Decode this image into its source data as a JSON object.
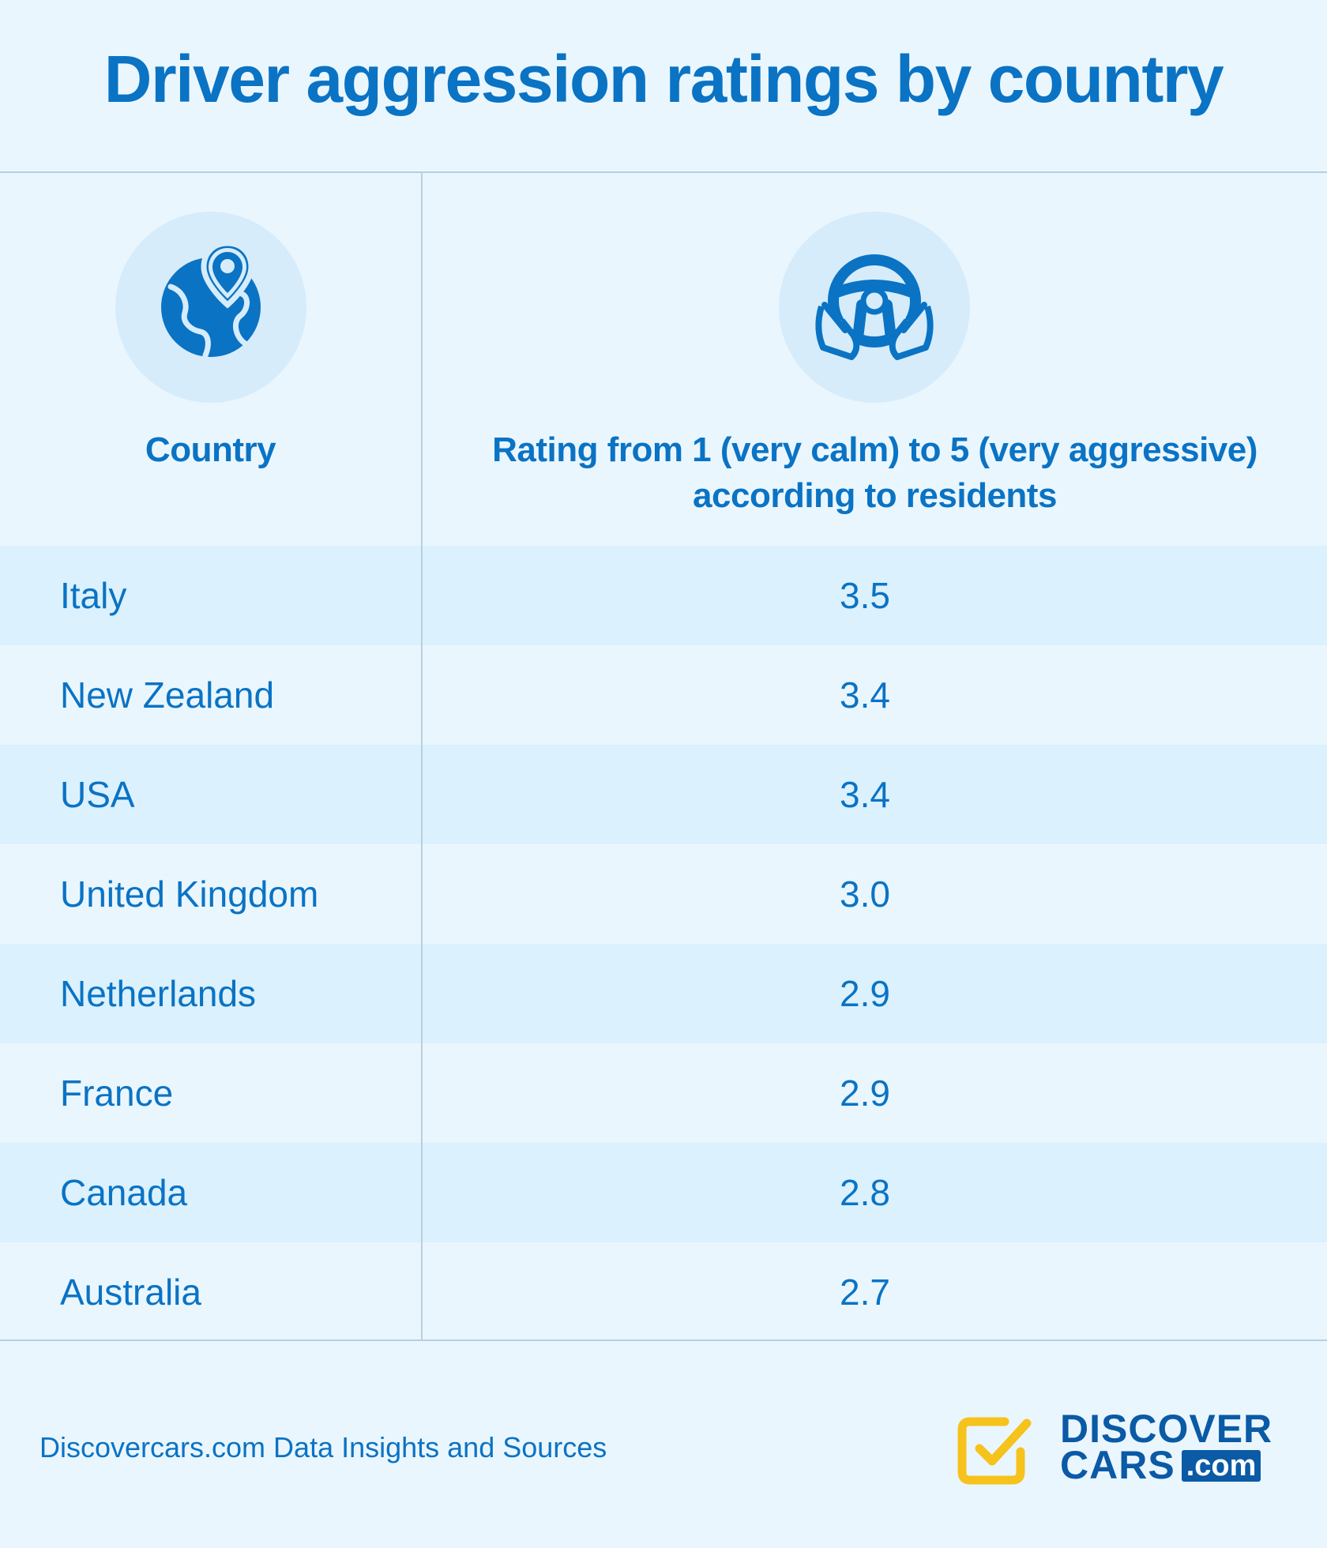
{
  "title": "Driver aggression ratings by country",
  "header": {
    "country_label": "Country",
    "rating_label_line1": "Rating from 1 (very calm) to 5 (very aggressive)",
    "rating_label_line2": "according to residents",
    "country_icon": "globe-location-pin-icon",
    "rating_icon": "hands-steering-wheel-icon"
  },
  "chart_data": {
    "type": "table",
    "title": "Driver aggression ratings by country",
    "columns": [
      "Country",
      "Rating from 1 (very calm) to 5 (very aggressive) according to residents"
    ],
    "rows": [
      {
        "country": "Italy",
        "rating": "3.5"
      },
      {
        "country": "New Zealand",
        "rating": "3.4"
      },
      {
        "country": "USA",
        "rating": "3.4"
      },
      {
        "country": "United Kingdom",
        "rating": "3.0"
      },
      {
        "country": "Netherlands",
        "rating": "2.9"
      },
      {
        "country": "France",
        "rating": "2.9"
      },
      {
        "country": "Canada",
        "rating": "2.8"
      },
      {
        "country": "Australia",
        "rating": "2.7"
      }
    ]
  },
  "footer": {
    "source": "Discovercars.com Data Insights and Sources",
    "logo_line1": "DISCOVER",
    "logo_line2": "CARS",
    "logo_com": ".com"
  },
  "colors": {
    "background": "#eaf6fe",
    "accent": "#0a73c4",
    "row_shade": "#dbf1fd",
    "logo_yellow": "#f6c21c",
    "logo_blue": "#0a5aa6"
  }
}
